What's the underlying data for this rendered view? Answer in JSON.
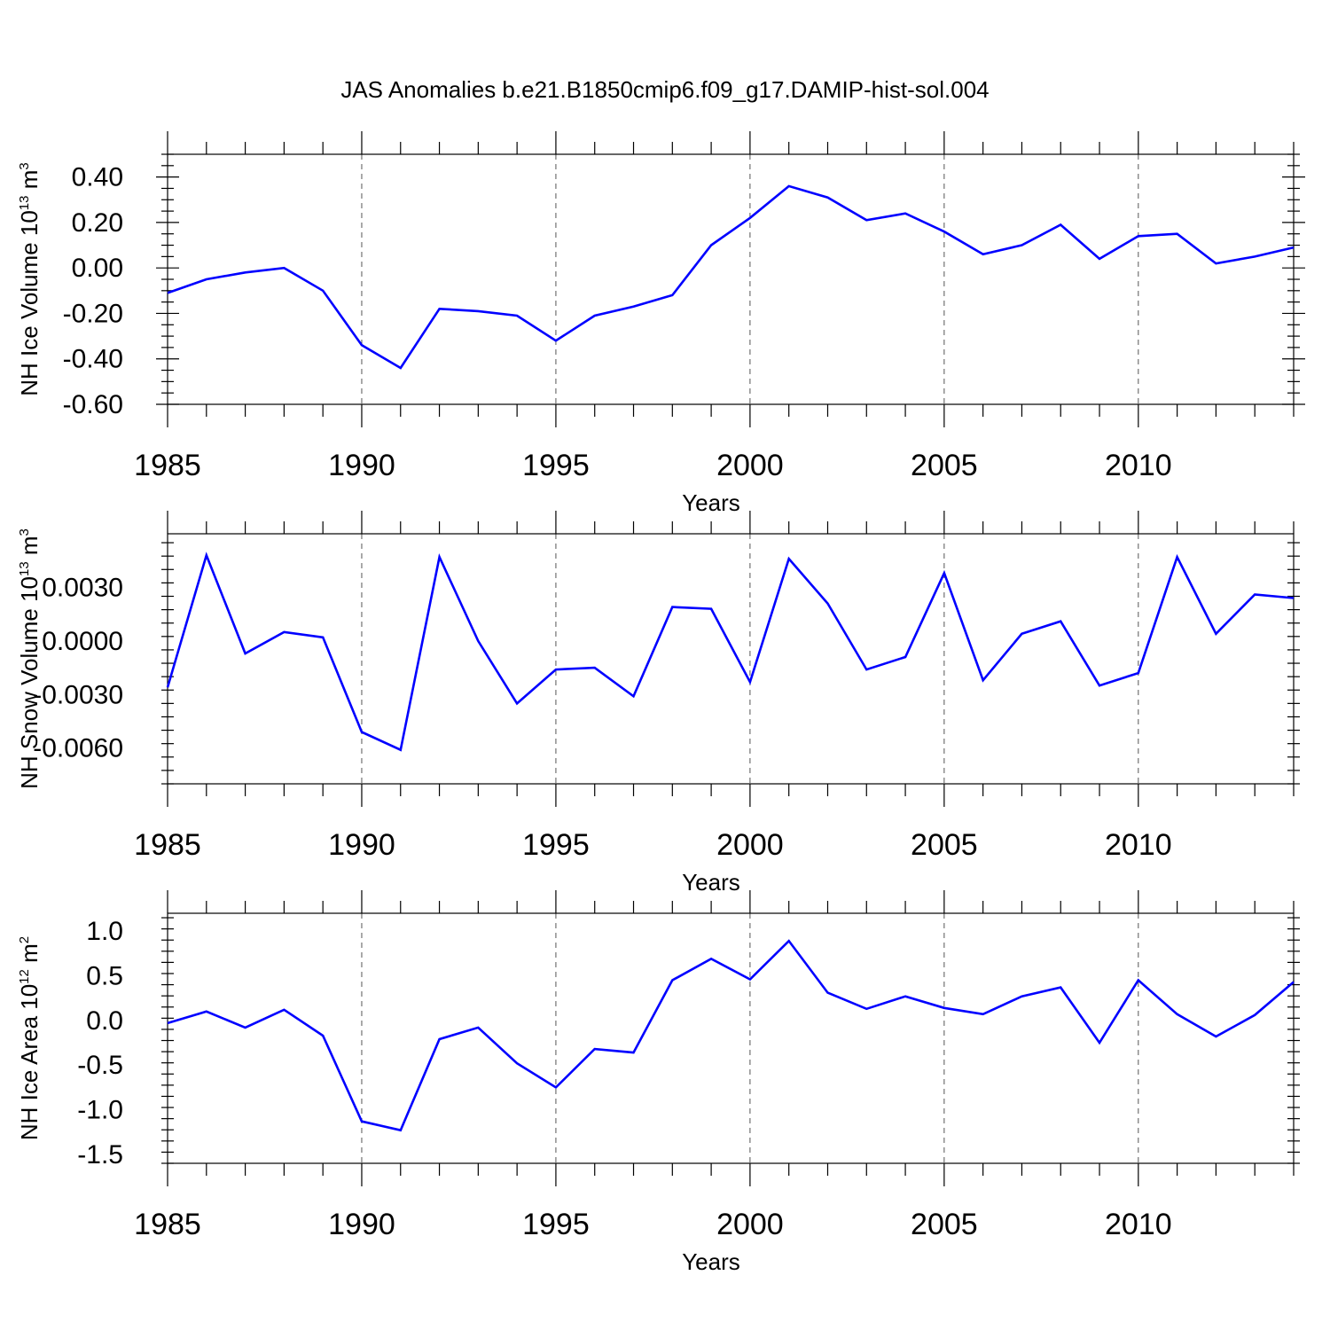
{
  "title": "JAS Anomalies b.e21.B1850cmip6.f09_g17.DAMIP-hist-sol.004",
  "series_color": "#0000ff",
  "chart_data": [
    {
      "type": "line",
      "name": "panel-ice-volume",
      "ylabel_parts": [
        "NH Ice Volume 10",
        "13",
        " m",
        "3"
      ],
      "xlabel": "Years",
      "x": [
        1985,
        1986,
        1987,
        1988,
        1989,
        1990,
        1991,
        1992,
        1993,
        1994,
        1995,
        1996,
        1997,
        1998,
        1999,
        2000,
        2001,
        2002,
        2003,
        2004,
        2005,
        2006,
        2007,
        2008,
        2009,
        2010,
        2011,
        2012,
        2013,
        2014
      ],
      "values": [
        -0.11,
        -0.05,
        -0.02,
        0.0,
        -0.1,
        -0.34,
        -0.44,
        -0.18,
        -0.19,
        -0.21,
        -0.32,
        -0.21,
        -0.17,
        -0.12,
        0.1,
        0.22,
        0.36,
        0.31,
        0.21,
        0.24,
        0.16,
        0.06,
        0.1,
        0.19,
        0.04,
        0.14,
        0.15,
        0.02,
        0.05,
        0.09
      ],
      "xlim": [
        1985,
        2014
      ],
      "ylim": [
        -0.6,
        0.5
      ],
      "yticks": [
        "0.40",
        "0.20",
        "0.00",
        "-0.20",
        "-0.40",
        "-0.60"
      ],
      "ytick_values": [
        0.4,
        0.2,
        0.0,
        -0.2,
        -0.4,
        -0.6
      ],
      "xticks": [
        "1985",
        "1990",
        "1995",
        "2000",
        "2005",
        "2010"
      ],
      "xtick_values": [
        1985,
        1990,
        1995,
        2000,
        2005,
        2010
      ]
    },
    {
      "type": "line",
      "name": "panel-snow-volume",
      "ylabel_parts": [
        "NH Snow Volume 10",
        "13",
        " m",
        "3"
      ],
      "xlabel": "Years",
      "x": [
        1985,
        1986,
        1987,
        1988,
        1989,
        1990,
        1991,
        1992,
        1993,
        1994,
        1995,
        1996,
        1997,
        1998,
        1999,
        2000,
        2001,
        2002,
        2003,
        2004,
        2005,
        2006,
        2007,
        2008,
        2009,
        2010,
        2011,
        2012,
        2013,
        2014
      ],
      "values": [
        -0.0026,
        0.0048,
        -0.0007,
        0.0005,
        0.0002,
        -0.0051,
        -0.0061,
        0.0047,
        0.0,
        -0.0035,
        -0.0016,
        -0.0015,
        -0.0031,
        0.0019,
        0.0018,
        -0.0023,
        0.0046,
        0.0021,
        -0.0016,
        -0.0009,
        0.0038,
        -0.0022,
        0.0004,
        0.0011,
        -0.0025,
        -0.0018,
        0.0047,
        0.0004,
        0.0026,
        0.0024
      ],
      "xlim": [
        1985,
        2014
      ],
      "ylim": [
        -0.008,
        0.006
      ],
      "yticks": [
        "0.0030",
        "0.0000",
        "-0.0030",
        "-0.0060"
      ],
      "ytick_values": [
        0.003,
        0.0,
        -0.003,
        -0.006
      ],
      "xticks": [
        "1985",
        "1990",
        "1995",
        "2000",
        "2005",
        "2010"
      ],
      "xtick_values": [
        1985,
        1990,
        1995,
        2000,
        2005,
        2010
      ]
    },
    {
      "type": "line",
      "name": "panel-ice-area",
      "ylabel_parts": [
        "NH Ice Area 10",
        "12",
        " m",
        "2"
      ],
      "xlabel": "Years",
      "x": [
        1985,
        1986,
        1987,
        1988,
        1989,
        1990,
        1991,
        1992,
        1993,
        1994,
        1995,
        1996,
        1997,
        1998,
        1999,
        2000,
        2001,
        2002,
        2003,
        2004,
        2005,
        2006,
        2007,
        2008,
        2009,
        2010,
        2011,
        2012,
        2013,
        2014
      ],
      "values": [
        -0.03,
        0.1,
        -0.08,
        0.12,
        -0.17,
        -1.13,
        -1.23,
        -0.21,
        -0.08,
        -0.48,
        -0.75,
        -0.32,
        -0.36,
        0.45,
        0.69,
        0.46,
        0.89,
        0.31,
        0.13,
        0.27,
        0.14,
        0.07,
        0.27,
        0.37,
        -0.25,
        0.45,
        0.07,
        -0.18,
        0.06,
        0.43
      ],
      "xlim": [
        1985,
        2014
      ],
      "ylim": [
        -1.6,
        1.2
      ],
      "yticks": [
        "1.0",
        "0.5",
        "0.0",
        "-0.5",
        "-1.0",
        "-1.5"
      ],
      "ytick_values": [
        1.0,
        0.5,
        0.0,
        -0.5,
        -1.0,
        -1.5
      ],
      "xticks": [
        "1985",
        "1990",
        "1995",
        "2000",
        "2005",
        "2010"
      ],
      "xtick_values": [
        1985,
        1990,
        1995,
        2000,
        2005,
        2010
      ]
    }
  ]
}
